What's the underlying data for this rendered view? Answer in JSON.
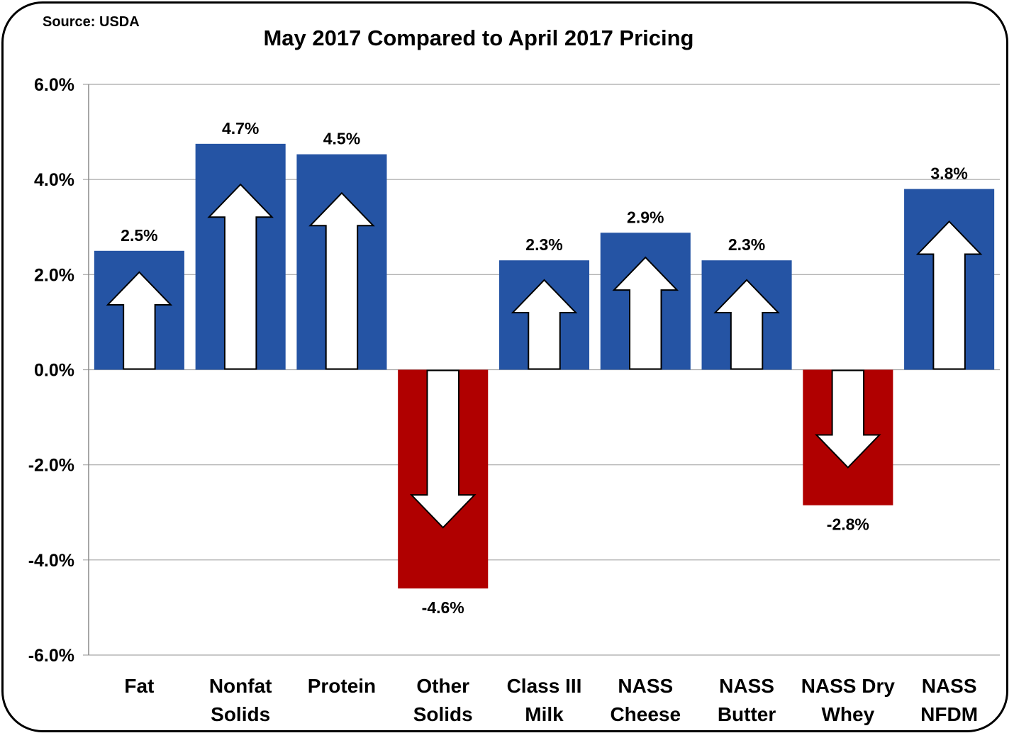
{
  "chart_data": {
    "type": "bar",
    "title": "May 2017 Compared to April 2017 Pricing",
    "source": "Source: USDA",
    "categories": [
      [
        "Fat"
      ],
      [
        "Nonfat",
        "Solids"
      ],
      [
        "Protein"
      ],
      [
        "Other",
        "Solids"
      ],
      [
        "Class III",
        "Milk"
      ],
      [
        "NASS",
        "Cheese"
      ],
      [
        "NASS",
        "Butter"
      ],
      [
        "NASS Dry",
        "Whey"
      ],
      [
        "NASS",
        "NFDM"
      ]
    ],
    "values": [
      2.5,
      4.75,
      4.53,
      -4.6,
      2.3,
      2.88,
      2.3,
      -2.85,
      3.8
    ],
    "value_labels": [
      "2.5%",
      "4.7%",
      "4.5%",
      "-4.6%",
      "2.3%",
      "2.9%",
      "2.3%",
      "-2.8%",
      "3.8%"
    ],
    "ylim": [
      -6.0,
      6.0
    ],
    "yticks": [
      6.0,
      4.0,
      2.0,
      0.0,
      -2.0,
      -4.0,
      -6.0
    ],
    "ytick_labels": [
      "6.0%",
      "4.0%",
      "2.0%",
      "0.0%",
      "-2.0%",
      "-4.0%",
      "-6.0%"
    ],
    "grid": true,
    "colors": {
      "positive": "#2554A4",
      "negative": "#B00000",
      "arrow_fill": "#ffffff",
      "arrow_stroke": "#000000",
      "grid": "#a6a6a6"
    }
  }
}
